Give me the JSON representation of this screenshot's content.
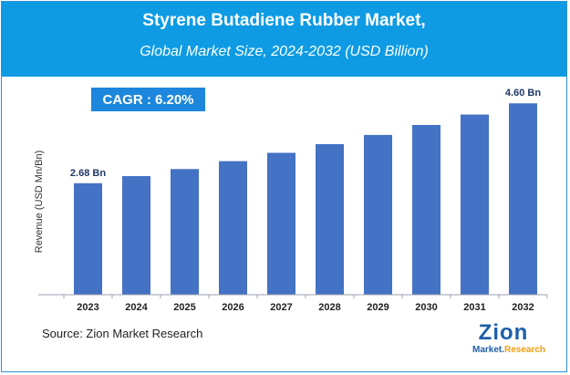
{
  "header": {
    "title": "Styrene Butadiene Rubber Market,",
    "subtitle": "Global Market Size, 2024-2032 (USD Billion)"
  },
  "cagr_label": "CAGR :  6.20%",
  "source": "Source: Zion Market Research",
  "logo": {
    "word": "Zion",
    "sub_main": "Market.",
    "sub_accent": "Research"
  },
  "colors": {
    "header": "#0e9be3",
    "bar": "#4472c4",
    "cagr_box": "#1c87dc"
  },
  "chart_data": {
    "type": "bar",
    "title": "Styrene Butadiene Rubber Market,",
    "subtitle": "Global Market Size, 2024-2032 (USD Billion)",
    "xlabel": "",
    "ylabel": "Revenue (USD Mn/Bn)",
    "categories": [
      "2023",
      "2024",
      "2025",
      "2026",
      "2027",
      "2028",
      "2029",
      "2030",
      "2031",
      "2032"
    ],
    "values": [
      2.68,
      2.85,
      3.02,
      3.21,
      3.41,
      3.62,
      3.84,
      4.08,
      4.33,
      4.6
    ],
    "data_labels": {
      "0": "2.68 Bn",
      "9": "4.60 Bn"
    },
    "ylim": [
      0,
      5.0
    ],
    "grid": false,
    "legend": "none"
  }
}
